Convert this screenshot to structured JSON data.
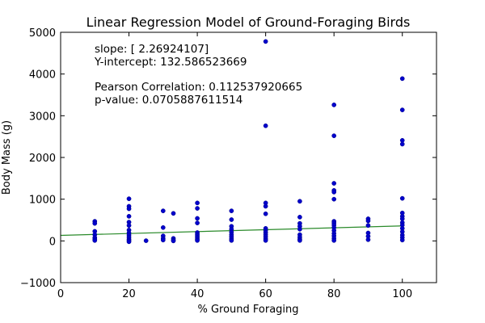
{
  "chart_data": {
    "type": "scatter",
    "title": "Linear Regression Model of Ground-Foraging Birds",
    "xlabel": "% Ground Foraging",
    "ylabel": "Body Mass (g)",
    "xlim": [
      0,
      110
    ],
    "ylim": [
      -1000,
      5000
    ],
    "xticks": [
      0,
      20,
      40,
      60,
      80,
      100
    ],
    "yticks": [
      -1000,
      0,
      1000,
      2000,
      3000,
      4000,
      5000
    ],
    "ytick_labels": [
      "−1000",
      "0",
      "1000",
      "2000",
      "3000",
      "4000",
      "5000"
    ],
    "grid": false,
    "point_color": "#0000cc",
    "line_color": "#2a8a2a",
    "annotations": [
      "slope: [ 2.26924107]",
      "Y-intercept: 132.586523669",
      "Pearson Correlation: 0.112537920665",
      "p-value: 0.0705887611514"
    ],
    "regression": {
      "slope": 2.26924107,
      "intercept": 132.586523669,
      "x_range": [
        0,
        100
      ]
    },
    "series": [
      {
        "points": [
          [
            10,
            470
          ],
          [
            10,
            420
          ],
          [
            10,
            230
          ],
          [
            10,
            150
          ],
          [
            10,
            80
          ],
          [
            10,
            40
          ],
          [
            10,
            10
          ],
          [
            20,
            1010
          ],
          [
            20,
            830
          ],
          [
            20,
            770
          ],
          [
            20,
            590
          ],
          [
            20,
            450
          ],
          [
            20,
            370
          ],
          [
            20,
            260
          ],
          [
            20,
            190
          ],
          [
            20,
            140
          ],
          [
            20,
            90
          ],
          [
            20,
            40
          ],
          [
            20,
            10
          ],
          [
            20,
            -20
          ],
          [
            25,
            5
          ],
          [
            30,
            720
          ],
          [
            30,
            320
          ],
          [
            30,
            120
          ],
          [
            30,
            60
          ],
          [
            30,
            20
          ],
          [
            33,
            660
          ],
          [
            33,
            60
          ],
          [
            33,
            20
          ],
          [
            33,
            0
          ],
          [
            40,
            910
          ],
          [
            40,
            780
          ],
          [
            40,
            540
          ],
          [
            40,
            430
          ],
          [
            40,
            200
          ],
          [
            40,
            160
          ],
          [
            40,
            120
          ],
          [
            40,
            80
          ],
          [
            40,
            40
          ],
          [
            40,
            10
          ],
          [
            50,
            720
          ],
          [
            50,
            510
          ],
          [
            50,
            350
          ],
          [
            50,
            280
          ],
          [
            50,
            210
          ],
          [
            50,
            150
          ],
          [
            50,
            100
          ],
          [
            50,
            50
          ],
          [
            50,
            10
          ],
          [
            60,
            4780
          ],
          [
            60,
            2760
          ],
          [
            60,
            910
          ],
          [
            60,
            830
          ],
          [
            60,
            650
          ],
          [
            60,
            300
          ],
          [
            60,
            250
          ],
          [
            60,
            200
          ],
          [
            60,
            150
          ],
          [
            60,
            100
          ],
          [
            60,
            50
          ],
          [
            60,
            10
          ],
          [
            70,
            950
          ],
          [
            70,
            570
          ],
          [
            70,
            420
          ],
          [
            70,
            350
          ],
          [
            70,
            280
          ],
          [
            70,
            150
          ],
          [
            70,
            90
          ],
          [
            70,
            40
          ],
          [
            70,
            10
          ],
          [
            80,
            3260
          ],
          [
            80,
            2520
          ],
          [
            80,
            1380
          ],
          [
            80,
            1210
          ],
          [
            80,
            1170
          ],
          [
            80,
            1000
          ],
          [
            80,
            470
          ],
          [
            80,
            430
          ],
          [
            80,
            380
          ],
          [
            80,
            320
          ],
          [
            80,
            250
          ],
          [
            80,
            180
          ],
          [
            80,
            120
          ],
          [
            80,
            60
          ],
          [
            80,
            10
          ],
          [
            90,
            530
          ],
          [
            90,
            480
          ],
          [
            90,
            370
          ],
          [
            90,
            190
          ],
          [
            90,
            110
          ],
          [
            90,
            30
          ],
          [
            100,
            3890
          ],
          [
            100,
            3140
          ],
          [
            100,
            2410
          ],
          [
            100,
            2320
          ],
          [
            100,
            1020
          ],
          [
            100,
            670
          ],
          [
            100,
            590
          ],
          [
            100,
            530
          ],
          [
            100,
            440
          ],
          [
            100,
            380
          ],
          [
            100,
            300
          ],
          [
            100,
            220
          ],
          [
            100,
            140
          ],
          [
            100,
            80
          ],
          [
            100,
            20
          ]
        ]
      }
    ]
  }
}
